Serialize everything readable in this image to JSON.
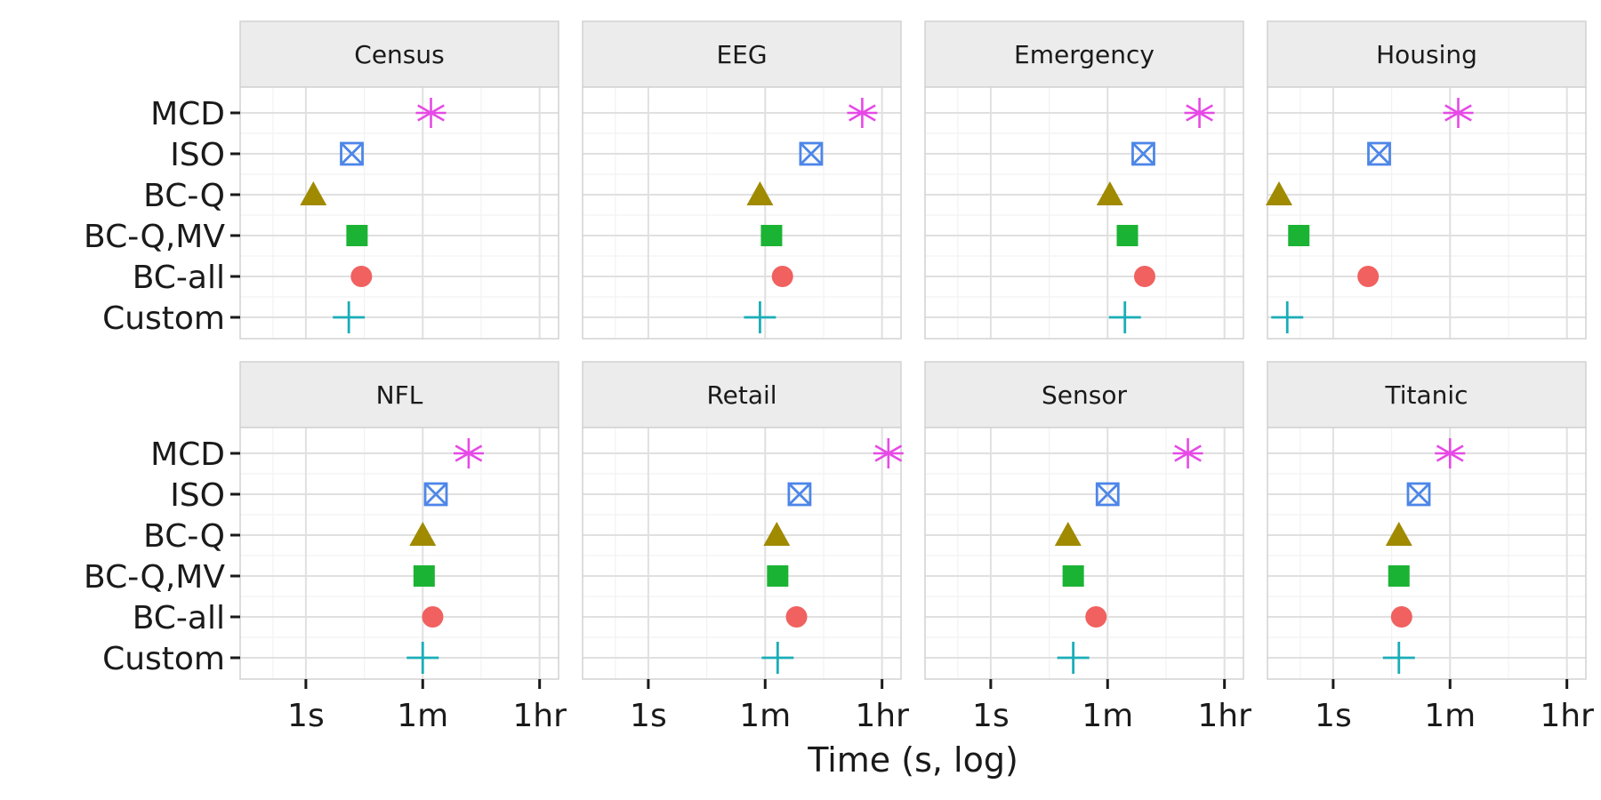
{
  "chart_data": {
    "type": "scatter",
    "xlabel": "Time (s, log)",
    "x_scale": "log",
    "x_unit": "seconds",
    "x_ticks": [
      {
        "label": "1s",
        "value": 1
      },
      {
        "label": "1m",
        "value": 60
      },
      {
        "label": "1hr",
        "value": 3600
      }
    ],
    "xlim": [
      0.1,
      7000
    ],
    "grid": true,
    "facet_layout": {
      "rows": 2,
      "cols": 4
    },
    "categories": [
      "MCD",
      "ISO",
      "BC-Q",
      "BC-Q,MV",
      "BC-all",
      "Custom"
    ],
    "methods": [
      {
        "name": "MCD",
        "color": "#E64AE6",
        "shape": "asterisk"
      },
      {
        "name": "ISO",
        "color": "#4D86E8",
        "shape": "square-cross"
      },
      {
        "name": "BC-Q",
        "color": "#A08A00",
        "shape": "triangle"
      },
      {
        "name": "BC-Q,MV",
        "color": "#1BB334",
        "shape": "square"
      },
      {
        "name": "BC-all",
        "color": "#F0615F",
        "shape": "circle"
      },
      {
        "name": "Custom",
        "color": "#1AADB8",
        "shape": "plus"
      }
    ],
    "panels": [
      {
        "title": "Census",
        "values": {
          "MCD": 80,
          "ISO": 5,
          "BC-Q": 1.3,
          "BC-Q,MV": 6,
          "BC-all": 7,
          "Custom": 4.5
        }
      },
      {
        "title": "EEG",
        "values": {
          "MCD": 1800,
          "ISO": 300,
          "BC-Q": 50,
          "BC-Q,MV": 75,
          "BC-all": 110,
          "Custom": 50
        }
      },
      {
        "title": "Emergency",
        "values": {
          "MCD": 1500,
          "ISO": 210,
          "BC-Q": 65,
          "BC-Q,MV": 120,
          "BC-all": 220,
          "Custom": 110
        }
      },
      {
        "title": "Housing",
        "values": {
          "MCD": 80,
          "ISO": 5,
          "BC-Q": 0.15,
          "BC-Q,MV": 0.3,
          "BC-all": 3.4,
          "Custom": 0.2
        }
      },
      {
        "title": "NFL",
        "values": {
          "MCD": 300,
          "ISO": 95,
          "BC-Q": 60,
          "BC-Q,MV": 63,
          "BC-all": 85,
          "Custom": 60
        }
      },
      {
        "title": "Retail",
        "values": {
          "MCD": 4500,
          "ISO": 200,
          "BC-Q": 90,
          "BC-Q,MV": 93,
          "BC-all": 180,
          "Custom": 93
        }
      },
      {
        "title": "Sensor",
        "values": {
          "MCD": 1000,
          "ISO": 60,
          "BC-Q": 15,
          "BC-Q,MV": 18,
          "BC-all": 40,
          "Custom": 18
        }
      },
      {
        "title": "Titanic",
        "values": {
          "MCD": 60,
          "ISO": 20,
          "BC-Q": 10,
          "BC-Q,MV": 10,
          "BC-all": 11,
          "Custom": 10
        }
      }
    ]
  }
}
